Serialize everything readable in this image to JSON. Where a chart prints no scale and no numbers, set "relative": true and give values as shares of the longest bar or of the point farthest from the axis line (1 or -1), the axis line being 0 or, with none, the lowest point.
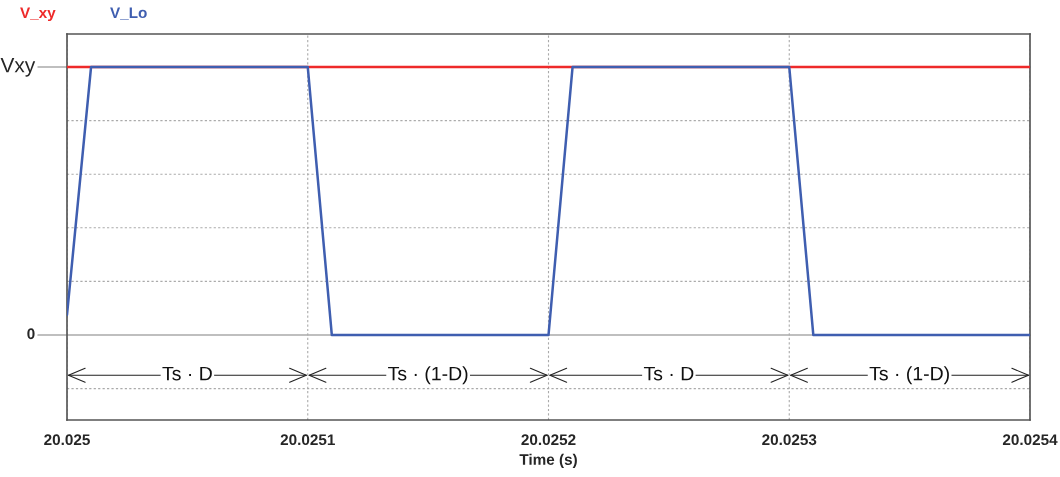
{
  "chart_data": {
    "type": "line",
    "xlabel": "Time (s)",
    "legend": "top left",
    "grid": true,
    "line_style": "solid",
    "marker": "none",
    "xlim": [
      20.025,
      20.0254
    ],
    "xticks": [
      20.025,
      20.0251,
      20.0252,
      20.0253,
      20.0254
    ],
    "relative": true,
    "ref_lines": [
      {
        "axis": "y",
        "value": 1,
        "label": "Vxy",
        "color": "#aaaaaa",
        "line_style": "solid"
      },
      {
        "axis": "y",
        "value": 0,
        "label": "0",
        "color": "#aaaaaa",
        "line_style": "solid"
      }
    ],
    "series": [
      {
        "name": "V_xy",
        "color": "#ee2a2a",
        "x": [
          20.025,
          20.0254
        ],
        "values": [
          1,
          1
        ]
      },
      {
        "name": "V_Lo",
        "color": "#3f5eb0",
        "x": [
          20.025,
          20.02501,
          20.0251,
          20.02511,
          20.0252,
          20.02521,
          20.0253,
          20.02531,
          20.0254
        ],
        "values": [
          0.075,
          1,
          1,
          0,
          0,
          1,
          1,
          0,
          0
        ]
      }
    ],
    "annotations": [
      "Ts · D",
      "Ts · (1-D)",
      "Ts · D",
      "Ts · (1-D)"
    ]
  }
}
